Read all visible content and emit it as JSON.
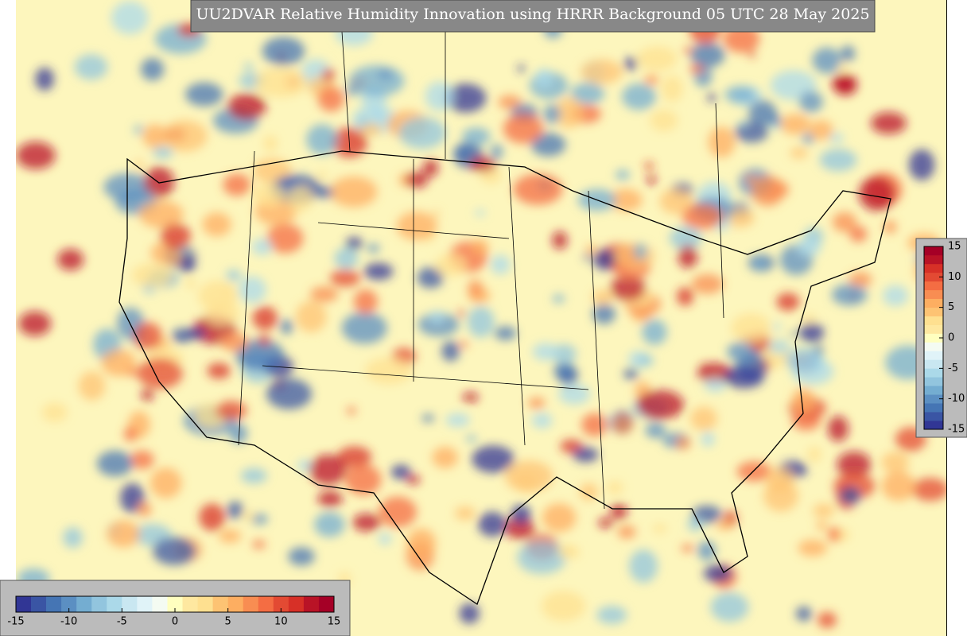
{
  "title": "UU2DVAR Relative Humidity Innovation using HRRR Background 05 UTC 28 May 2025",
  "colorbar": {
    "range": [
      -15,
      15
    ],
    "ticks": [
      -15,
      -10,
      -5,
      0,
      5,
      10,
      15
    ],
    "colors": [
      "#313695",
      "#3a55a4",
      "#4575b4",
      "#5b8fc2",
      "#74add1",
      "#92c5de",
      "#abd9e9",
      "#c9e7f1",
      "#e0f3f8",
      "#f4fbf2",
      "#ffffbf",
      "#fee8a0",
      "#fee090",
      "#fdc373",
      "#fdae61",
      "#f88d52",
      "#f46d43",
      "#e34a33",
      "#d73027",
      "#b91326",
      "#a50026"
    ]
  }
}
